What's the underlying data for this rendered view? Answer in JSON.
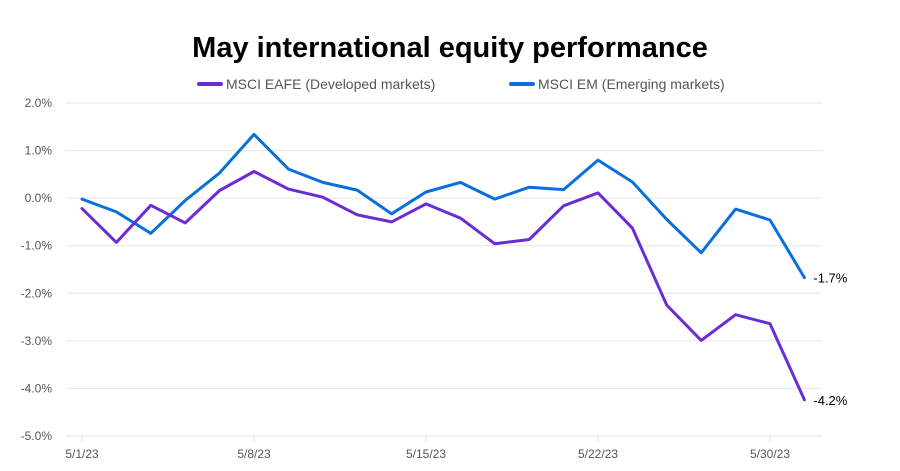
{
  "chart_data": {
    "type": "line",
    "title": "May international equity performance",
    "xlabel": "",
    "ylabel": "",
    "ylim": [
      -5.0,
      2.0
    ],
    "yticks": [
      2.0,
      1.0,
      0.0,
      -1.0,
      -2.0,
      -3.0,
      -4.0,
      -5.0
    ],
    "ytick_labels": [
      "2.0%",
      "1.0%",
      "0.0%",
      "-1.0%",
      "-2.0%",
      "-3.0%",
      "-4.0%",
      "-5.0%"
    ],
    "xtick_labels": [
      {
        "index": 0,
        "label": "5/1/23"
      },
      {
        "index": 5,
        "label": "5/8/23"
      },
      {
        "index": 10,
        "label": "5/15/23"
      },
      {
        "index": 15,
        "label": "5/22/23"
      },
      {
        "index": 20,
        "label": "5/30/23"
      }
    ],
    "grid": true,
    "legend_position": "top",
    "series": [
      {
        "name": "MSCI EAFE (Developed markets)",
        "color": "#6a2cd6",
        "values": [
          -0.22,
          -0.93,
          -0.15,
          -0.52,
          0.16,
          0.56,
          0.19,
          0.02,
          -0.35,
          -0.5,
          -0.12,
          -0.42,
          -0.96,
          -0.87,
          -0.16,
          0.11,
          -0.63,
          -2.25,
          -2.99,
          -2.45,
          -2.64,
          -4.24
        ],
        "end_label": "-4.2%"
      },
      {
        "name": "MSCI EM (Emerging markets)",
        "color": "#0a6fdc",
        "values": [
          -0.02,
          -0.29,
          -0.74,
          -0.05,
          0.53,
          1.34,
          0.61,
          0.33,
          0.17,
          -0.33,
          0.13,
          0.33,
          -0.02,
          0.23,
          0.18,
          0.8,
          0.34,
          -0.45,
          -1.15,
          -0.23,
          -0.46,
          -1.67
        ],
        "end_label": "-1.7%"
      }
    ]
  }
}
